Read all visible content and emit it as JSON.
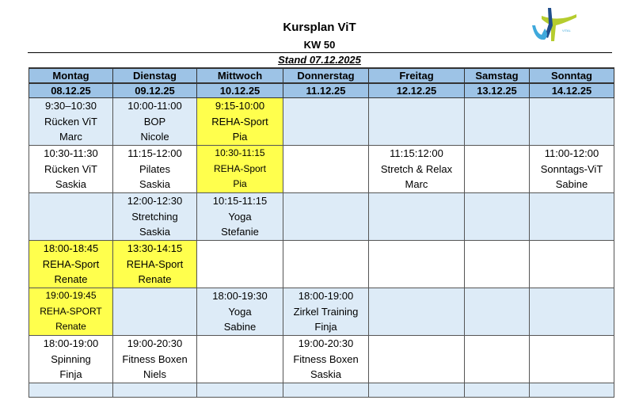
{
  "header": {
    "title": "Kursplan ViT",
    "week": "KW 50",
    "stand": "Stand 07.12.2025",
    "logo_text": "VITAL"
  },
  "colors": {
    "header_blue": "#9dc3e6",
    "row_blue": "#ddebf7",
    "highlight_yellow": "#ffff4d"
  },
  "days": [
    {
      "name": "Montag",
      "date": "08.12.25"
    },
    {
      "name": "Dienstag",
      "date": "09.12.25"
    },
    {
      "name": "Mittwoch",
      "date": "10.12.25"
    },
    {
      "name": "Donnerstag",
      "date": "11.12.25"
    },
    {
      "name": "Freitag",
      "date": "12.12.25"
    },
    {
      "name": "Samstag",
      "date": "13.12.25"
    },
    {
      "name": "Sonntag",
      "date": "14.12.25"
    }
  ],
  "rows": [
    [
      {
        "t": "9:30–10:30",
        "c": "Rücken ViT",
        "p": "Marc"
      },
      {
        "t": "10:00-11:00",
        "c": "BOP",
        "p": "Nicole"
      },
      {
        "t": "9:15-10:00",
        "c": "REHA-Sport",
        "p": "Pia",
        "hl": true
      },
      null,
      null,
      null,
      null
    ],
    [
      {
        "t": "10:30-11:30",
        "c": "Rücken ViT",
        "p": "Saskia"
      },
      {
        "t": "11:15-12:00",
        "c": "Pilates",
        "p": "Saskia"
      },
      {
        "t": "10:30-11:15",
        "c": "REHA-Sport",
        "p": "Pia",
        "hl": true,
        "small": true
      },
      null,
      {
        "t": "11:15:12:00",
        "c": "Stretch & Relax",
        "p": "Marc"
      },
      null,
      {
        "t": "11:00-12:00",
        "c": "Sonntags-ViT",
        "p": "Sabine"
      }
    ],
    [
      null,
      {
        "t": "12:00-12:30",
        "c": "Stretching",
        "p": "Saskia"
      },
      {
        "t": "10:15-11:15",
        "c": "Yoga",
        "p": "Stefanie"
      },
      null,
      null,
      null,
      null
    ],
    [
      {
        "t": "18:00-18:45",
        "c": "REHA-Sport",
        "p": "Renate",
        "hl": true
      },
      {
        "t": "13:30-14:15",
        "c": "REHA-Sport",
        "p": "Renate",
        "hl": true
      },
      null,
      null,
      null,
      null,
      null
    ],
    [
      {
        "t": "19:00-19:45",
        "c": "REHA-SPORT",
        "p": "Renate",
        "hl": true,
        "small": true
      },
      null,
      {
        "t": "18:00-19:30",
        "c": "Yoga",
        "p": "Sabine"
      },
      {
        "t": "18:00-19:00",
        "c": "Zirkel Training",
        "p": "Finja"
      },
      null,
      null,
      null
    ],
    [
      {
        "t": "18:00-19:00",
        "c": "Spinning",
        "p": "Finja"
      },
      {
        "t": "19:00-20:30",
        "c": "Fitness Boxen",
        "p": "Niels"
      },
      null,
      {
        "t": "19:00-20:30",
        "c": "Fitness Boxen",
        "p": "Saskia"
      },
      null,
      null,
      null
    ]
  ]
}
